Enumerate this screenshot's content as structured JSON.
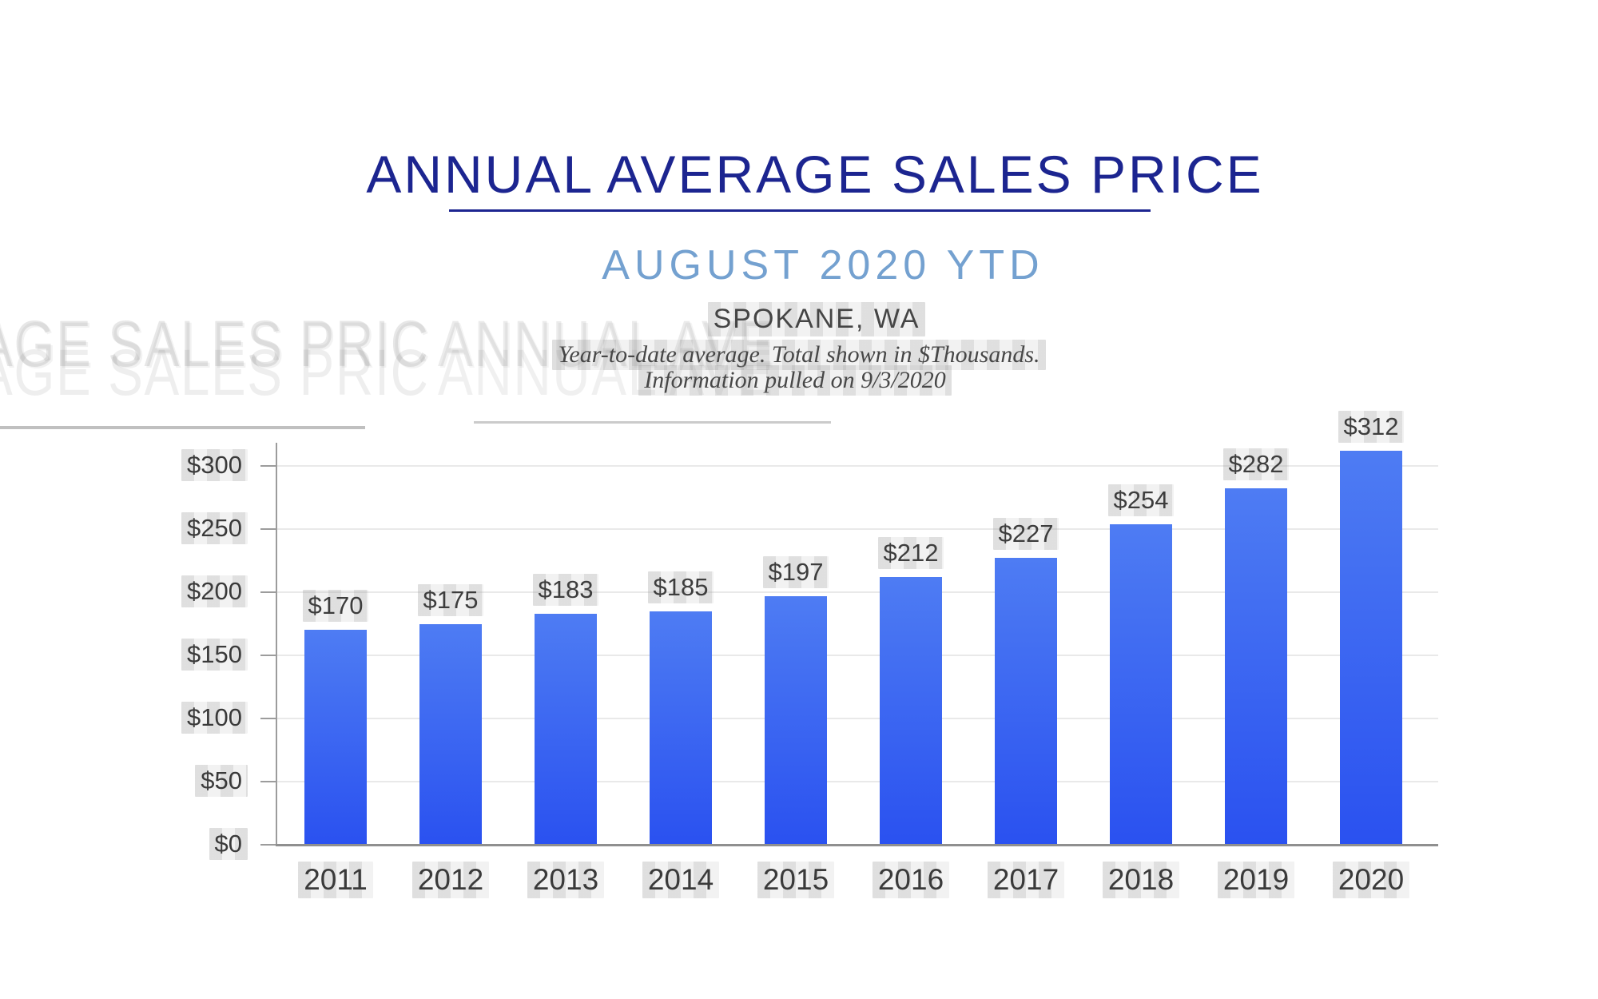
{
  "header": {
    "title": "ANNUAL AVERAGE SALES PRICE",
    "subtitle": "AUGUST 2020 YTD",
    "location": "SPOKANE, WA",
    "note_line1": "Year-to-date average.  Total shown in $Thousands.",
    "note_line2": "Information pulled on 9/3/2020"
  },
  "watermark": {
    "left_fragment": "AGE SALES PRIC",
    "right_fragment": "ANNUAL AVE"
  },
  "chart_data": {
    "type": "bar",
    "title": "ANNUAL AVERAGE SALES PRICE",
    "subtitle": "AUGUST 2020 YTD",
    "region": "SPOKANE, WA",
    "units": "$Thousands",
    "categories": [
      "2011",
      "2012",
      "2013",
      "2014",
      "2015",
      "2016",
      "2017",
      "2018",
      "2019",
      "2020"
    ],
    "values": [
      170,
      175,
      183,
      185,
      197,
      212,
      227,
      254,
      282,
      312
    ],
    "value_labels": [
      "$170",
      "$175",
      "$183",
      "$185",
      "$197",
      "$212",
      "$227",
      "$254",
      "$282",
      "$312"
    ],
    "ytick_labels": [
      "$0",
      "$50",
      "$100",
      "$150",
      "$200",
      "$250",
      "$300"
    ],
    "ytick_values": [
      0,
      50,
      100,
      150,
      200,
      250,
      300
    ],
    "ylim": [
      0,
      316
    ],
    "grid": true,
    "legend": "none",
    "xlabel": "",
    "ylabel": ""
  },
  "colors": {
    "title_navy": "#1c2590",
    "subtitle_blue": "#74a1d0",
    "text_dark": "#3d3d3d",
    "axis_gray": "#9c9c9c",
    "baseline_gray": "#8f8f8f",
    "gridline_gray": "#e9e9e9",
    "bar_gradient_top": "#4e7cf3",
    "bar_gradient_bottom": "#2a51f0",
    "watermark_gray": "#e4e4e4"
  }
}
